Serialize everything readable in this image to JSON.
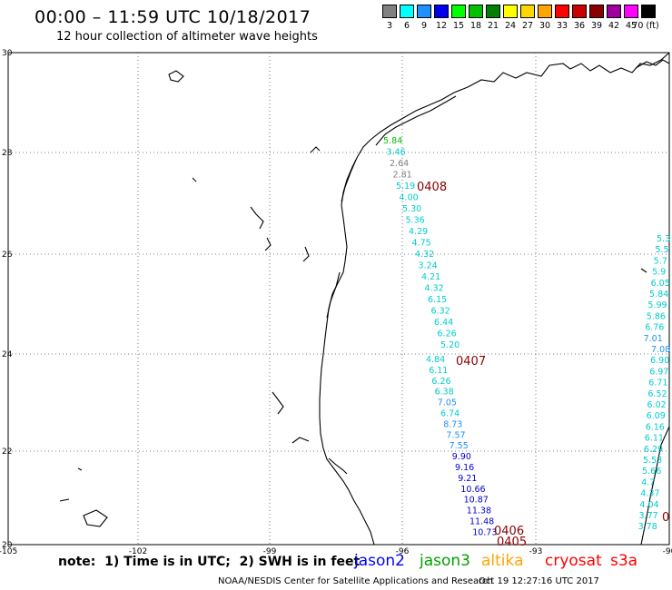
{
  "header": {
    "title": "00:00 – 11:59 UTC 10/18/2017",
    "subtitle": "12 hour collection of altimeter wave heights"
  },
  "colorbar": {
    "entries": [
      {
        "color": "#808080",
        "label": "3"
      },
      {
        "color": "#00ffff",
        "label": "6"
      },
      {
        "color": "#1e90ff",
        "label": "9"
      },
      {
        "color": "#0000ee",
        "label": "12"
      },
      {
        "color": "#00ff00",
        "label": "15"
      },
      {
        "color": "#00c000",
        "label": "18"
      },
      {
        "color": "#008000",
        "label": "21"
      },
      {
        "color": "#ffff00",
        "label": "24"
      },
      {
        "color": "#ffd700",
        "label": "27"
      },
      {
        "color": "#ffa500",
        "label": "30"
      },
      {
        "color": "#ff0000",
        "label": "33"
      },
      {
        "color": "#cc0000",
        "label": "36"
      },
      {
        "color": "#8b0000",
        "label": "39"
      },
      {
        "color": "#a000a0",
        "label": "42"
      },
      {
        "color": "#ff00ff",
        "label": "45"
      },
      {
        "color": "#000000",
        "label": "70 (ft)"
      }
    ]
  },
  "axes": {
    "lat_labels": [
      "30",
      "28",
      "26",
      "24",
      "22",
      "20"
    ],
    "lon_labels": [
      "-105",
      "-102",
      "-99",
      "-96",
      "-93",
      "-90"
    ]
  },
  "tracks": [
    {
      "pass": "0408",
      "values": [
        {
          "v": "5.84",
          "c": "#00c000"
        },
        {
          "v": "3.46",
          "c": "#00cccc"
        },
        {
          "v": "2.64",
          "c": "#808080"
        },
        {
          "v": "2.81",
          "c": "#808080"
        },
        {
          "v": "5.19",
          "c": "#00cccc"
        },
        {
          "v": "4.00",
          "c": "#00cccc"
        },
        {
          "v": "5.30",
          "c": "#00cccc"
        },
        {
          "v": "5.36",
          "c": "#00cccc"
        },
        {
          "v": "4.29",
          "c": "#00cccc"
        },
        {
          "v": "4.75",
          "c": "#00cccc"
        },
        {
          "v": "4.32",
          "c": "#00cccc"
        },
        {
          "v": "3.24",
          "c": "#00cccc"
        },
        {
          "v": "4.21",
          "c": "#00cccc"
        },
        {
          "v": "4.32",
          "c": "#00cccc"
        },
        {
          "v": "6.15",
          "c": "#00cccc"
        },
        {
          "v": "6.32",
          "c": "#00cccc"
        },
        {
          "v": "6.44",
          "c": "#00cccc"
        },
        {
          "v": "6.26",
          "c": "#00cccc"
        },
        {
          "v": "5.20",
          "c": "#00cccc"
        }
      ]
    },
    {
      "pass": "0407",
      "values": [
        {
          "v": "4.84",
          "c": "#00cccc"
        },
        {
          "v": "6.11",
          "c": "#00cccc"
        },
        {
          "v": "6.26",
          "c": "#00cccc"
        },
        {
          "v": "6.38",
          "c": "#00cccc"
        },
        {
          "v": "7.05",
          "c": "#1e90ff"
        },
        {
          "v": "6.74",
          "c": "#00cccc"
        },
        {
          "v": "8.73",
          "c": "#1e90ff"
        },
        {
          "v": "7.57",
          "c": "#1e90ff"
        },
        {
          "v": "7.55",
          "c": "#1e90ff"
        },
        {
          "v": "9.90",
          "c": "#0000cc"
        },
        {
          "v": "9.16",
          "c": "#0000cc"
        },
        {
          "v": "9.21",
          "c": "#0000cc"
        },
        {
          "v": "10.66",
          "c": "#0000cc"
        },
        {
          "v": "10.87",
          "c": "#0000cc"
        },
        {
          "v": "11.38",
          "c": "#0000cc"
        },
        {
          "v": "11.48",
          "c": "#0000cc"
        },
        {
          "v": "10.73",
          "c": "#0000cc"
        }
      ]
    },
    {
      "passes": [
        "0406",
        "0405"
      ]
    }
  ],
  "east_track": {
    "values": [
      {
        "v": "5.3",
        "c": "#00cccc"
      },
      {
        "v": "5.5",
        "c": "#00cccc"
      },
      {
        "v": "5.7",
        "c": "#00cccc"
      },
      {
        "v": "5.9",
        "c": "#00cccc"
      },
      {
        "v": "6.05",
        "c": "#00cccc"
      },
      {
        "v": "5.84",
        "c": "#00cccc"
      },
      {
        "v": "5.99",
        "c": "#00cccc"
      },
      {
        "v": "5.86",
        "c": "#00cccc"
      },
      {
        "v": "6.76",
        "c": "#00cccc"
      },
      {
        "v": "7.01",
        "c": "#1e90ff"
      },
      {
        "v": "7.08",
        "c": "#1e90ff"
      },
      {
        "v": "6.90",
        "c": "#00cccc"
      },
      {
        "v": "6.97",
        "c": "#00cccc"
      },
      {
        "v": "6.71",
        "c": "#00cccc"
      },
      {
        "v": "6.52",
        "c": "#00cccc"
      },
      {
        "v": "6.02",
        "c": "#00cccc"
      },
      {
        "v": "6.09",
        "c": "#00cccc"
      },
      {
        "v": "6.16",
        "c": "#00cccc"
      },
      {
        "v": "6.11",
        "c": "#00cccc"
      },
      {
        "v": "6.29",
        "c": "#00cccc"
      },
      {
        "v": "5.53",
        "c": "#00cccc"
      },
      {
        "v": "5.66",
        "c": "#00cccc"
      },
      {
        "v": "4.7",
        "c": "#00cccc"
      },
      {
        "v": "4.37",
        "c": "#00cccc"
      },
      {
        "v": "4.04",
        "c": "#00cccc"
      },
      {
        "v": "3.77",
        "c": "#00cccc"
      },
      {
        "v": "3.78",
        "c": "#00cccc"
      }
    ],
    "partial_pass": "0"
  },
  "footer": {
    "note": "note:  1) Time is in UTC;  2) SWH is in feet",
    "missions": [
      {
        "name": "jason2",
        "color": "#0000ff"
      },
      {
        "name": "jason3",
        "color": "#00a000"
      },
      {
        "name": "altika",
        "color": "#ffa500"
      },
      {
        "name": "cryosat",
        "color": "#ff0000"
      },
      {
        "name": "s3a",
        "color": "#ff0000"
      }
    ],
    "credit": "NOAA/NESDIS Center for Satellite Applications and Research",
    "timestamp": "Oct 19 12:27:16 UTC 2017"
  }
}
